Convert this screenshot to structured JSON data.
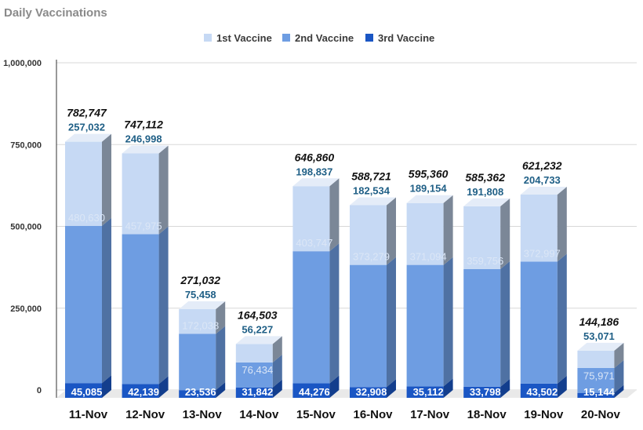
{
  "chart_data": {
    "type": "bar",
    "stacked": true,
    "title": "Daily Vaccinations",
    "xlabel": "",
    "ylabel": "",
    "ylim": [
      0,
      1000000
    ],
    "yticks": [
      0,
      250000,
      500000,
      750000,
      1000000
    ],
    "ytick_labels": [
      "0",
      "250,000",
      "500,000",
      "750,000",
      "1,000,000"
    ],
    "legend_position": "top-center",
    "categories": [
      "11-Nov",
      "12-Nov",
      "13-Nov",
      "14-Nov",
      "15-Nov",
      "16-Nov",
      "17-Nov",
      "18-Nov",
      "19-Nov",
      "20-Nov"
    ],
    "series": [
      {
        "name": "3rd Vaccine",
        "color": "#1a56c4",
        "values": [
          45085,
          42139,
          23536,
          31842,
          44276,
          32908,
          35112,
          33798,
          43502,
          15144
        ],
        "labels": [
          "45,085",
          "42,139",
          "23,536",
          "31,842",
          "44,276",
          "32,908",
          "35,112",
          "33,798",
          "43,502",
          "15,144"
        ]
      },
      {
        "name": "2nd Vaccine",
        "color": "#6e9de2",
        "values": [
          480630,
          457975,
          172038,
          76434,
          403747,
          373279,
          371094,
          359756,
          372997,
          75971
        ],
        "labels": [
          "480,630",
          "457,975",
          "172,038",
          "76,434",
          "403,747",
          "373,279",
          "371,094",
          "359,756",
          "372,997",
          "75,971"
        ]
      },
      {
        "name": "1st Vaccine",
        "color": "#c6d9f4",
        "values": [
          257032,
          246998,
          75458,
          56227,
          198837,
          182534,
          189154,
          191808,
          204733,
          53071
        ],
        "labels": [
          "257,032",
          "246,998",
          "75,458",
          "56,227",
          "198,837",
          "182,534",
          "189,154",
          "191,808",
          "204,733",
          "53,071"
        ]
      }
    ],
    "totals": [
      782747,
      747112,
      271032,
      164503,
      646860,
      588721,
      595360,
      585362,
      621232,
      144186
    ],
    "total_labels": [
      "782,747",
      "747,112",
      "271,032",
      "164,503",
      "646,860",
      "588,721",
      "595,360",
      "585,362",
      "621,232",
      "144,186"
    ],
    "legend": [
      "1st Vaccine",
      "2nd Vaccine",
      "3rd Vaccine"
    ]
  }
}
